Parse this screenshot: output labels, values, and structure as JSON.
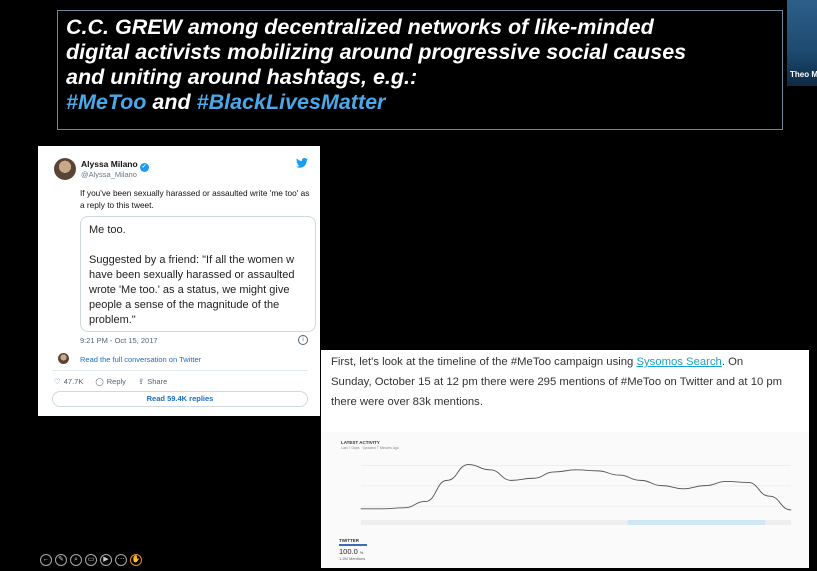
{
  "slide": {
    "title_lines": [
      "C.C. GREW among decentralized networks of like-minded",
      "digital activists mobilizing around progressive social causes",
      "and uniting around hashtags, e.g.:"
    ],
    "hashtag1": "#MeToo",
    "conjunction": " and ",
    "hashtag2": "#BlackLivesMatter"
  },
  "participant": {
    "name": "Theo M"
  },
  "tweet": {
    "author": "Alyssa Milano",
    "handle": "@Alyssa_Milano",
    "text": "If you've been sexually harassed or assaulted write 'me too' as a reply to this tweet.",
    "quote_lines": [
      "Me too.",
      "",
      "Suggested by a friend: \"If all the women w",
      "have been sexually harassed or assaulted",
      "wrote 'Me too.' as a status, we might give",
      "people a sense of the magnitude of the",
      "problem.\""
    ],
    "timestamp": "9:21 PM - Oct 15, 2017",
    "read_full": "Read the full conversation on Twitter",
    "likes": "47.7K",
    "reply_label": "Reply",
    "share_label": "Share",
    "replies_button": "Read 59.4K replies"
  },
  "article": {
    "line1_before": "First, let's look at the timeline of the #MeToo campaign using ",
    "link": "Sysomos Search",
    "line1_after": ". On",
    "line2": "Sunday, October 15 at 12 pm there were 295 mentions of #MeToo on Twitter and at 10 pm",
    "line3": "there were over 83k mentions."
  },
  "chart": {
    "panel_title": "LATEST ACTIVITY",
    "panel_subtitle": "Last 7 Days · Updated 7 Minutes Ago",
    "twitter_label": "TWITTER",
    "twitter_pct": "100.0",
    "twitter_pct_unit": "%",
    "mentions": "1.2M Mentions"
  },
  "chart_data": {
    "type": "area",
    "x": [
      0,
      1,
      2,
      3,
      4,
      5,
      6,
      7,
      8,
      9,
      10,
      11,
      12,
      13,
      14,
      15,
      16,
      17,
      18,
      19,
      20
    ],
    "y": [
      3,
      3,
      4,
      10,
      30,
      45,
      40,
      30,
      32,
      38,
      40,
      39,
      35,
      30,
      25,
      22,
      25,
      29,
      28,
      15,
      2
    ],
    "ylim": [
      0,
      55
    ],
    "grid": true,
    "color": "#555555"
  },
  "toolbar": {
    "icons": [
      "back-icon",
      "pen-icon",
      "zoom-icon",
      "captions-icon",
      "video-icon",
      "more-icon",
      "pointer-icon"
    ]
  }
}
